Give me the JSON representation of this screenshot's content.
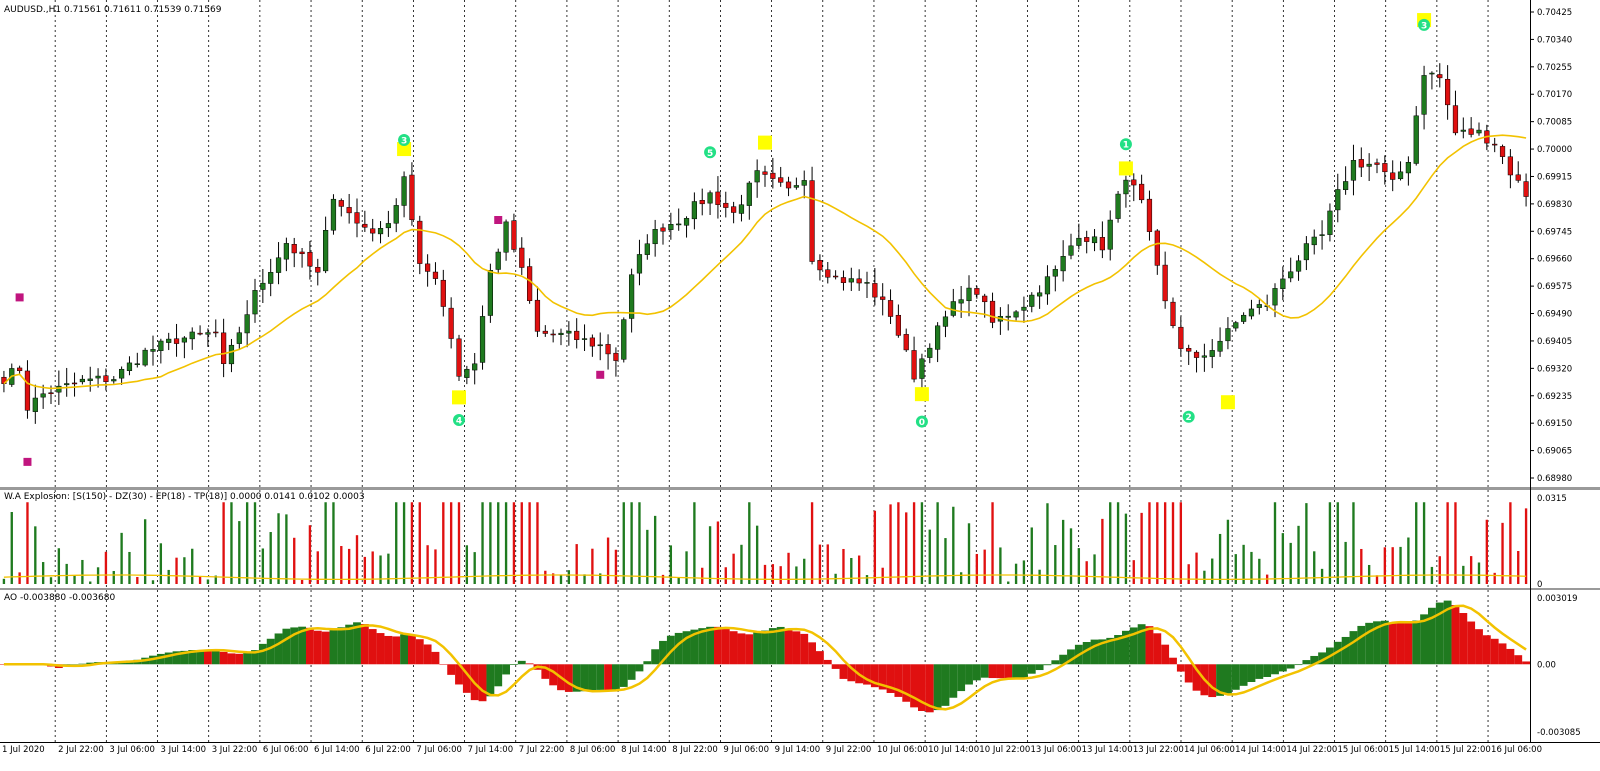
{
  "panels": {
    "price": {
      "title": "AUDUSD.,H1  0.71561 0.71611 0.71539 0.71569",
      "y_ticks": [
        "0.70425",
        "0.70340",
        "0.70255",
        "0.70170",
        "0.70085",
        "0.70000",
        "0.69915",
        "0.69830",
        "0.69745",
        "0.69660",
        "0.69575",
        "0.69490",
        "0.69405",
        "0.69320",
        "0.69235",
        "0.69150",
        "0.69065",
        "0.68980"
      ],
      "ylim": [
        0.6898,
        0.70425
      ]
    },
    "explosion": {
      "title": "W.A Explosion: [S(150) - DZ(30) - EP(18) - TP(18)] 0.0000 0.0141 0.0102 0.0003",
      "y_ticks": [
        "0.0315",
        "0"
      ],
      "ylim": [
        0,
        0.0315
      ]
    },
    "ao": {
      "title": "AO -0.003880 -0.003680",
      "y_ticks": [
        "0.003019",
        "0.00",
        "-0.003085"
      ],
      "ylim": [
        -0.003085,
        0.003019
      ]
    }
  },
  "x_ticks": [
    "1 Jul 2020",
    "2 Jul 22:00",
    "3 Jul 06:00",
    "3 Jul 14:00",
    "3 Jul 22:00",
    "6 Jul 06:00",
    "6 Jul 14:00",
    "6 Jul 22:00",
    "7 Jul 06:00",
    "7 Jul 14:00",
    "7 Jul 22:00",
    "8 Jul 06:00",
    "8 Jul 14:00",
    "8 Jul 22:00",
    "9 Jul 06:00",
    "9 Jul 14:00",
    "9 Jul 22:00",
    "10 Jul 06:00",
    "10 Jul 14:00",
    "10 Jul 22:00",
    "13 Jul 06:00",
    "13 Jul 14:00",
    "13 Jul 22:00",
    "14 Jul 06:00",
    "14 Jul 14:00",
    "14 Jul 22:00",
    "15 Jul 06:00",
    "15 Jul 14:00",
    "15 Jul 22:00",
    "16 Jul 06:00"
  ],
  "wave_labels": [
    {
      "text": "3",
      "bar": 51,
      "price": 0.70028
    },
    {
      "text": "4",
      "bar": 58,
      "price": 0.6916
    },
    {
      "text": "5",
      "bar": 90,
      "price": 0.6999
    },
    {
      "text": "0",
      "bar": 117,
      "price": 0.69155
    },
    {
      "text": "1",
      "bar": 143,
      "price": 0.70015
    },
    {
      "text": "2",
      "bar": 151,
      "price": 0.6917
    },
    {
      "text": "3",
      "bar": 181,
      "price": 0.70385
    }
  ],
  "colors": {
    "bull": "#1f7a1f",
    "bear": "#e01010",
    "ma": "#f2c200",
    "ao_line": "#f2c200",
    "marker_yellow": "#ffff00",
    "marker_magenta": "#c0157e",
    "wave": "#22e085",
    "grid": "#000000"
  },
  "chart_data": {
    "type": "candlestick",
    "symbol": "AUDUSD.",
    "timeframe": "H1",
    "bars": 195,
    "close_waypoints": [
      [
        0,
        0.6929
      ],
      [
        2,
        0.6932
      ],
      [
        3,
        0.692
      ],
      [
        5,
        0.6924
      ],
      [
        10,
        0.6928
      ],
      [
        14,
        0.6929
      ],
      [
        18,
        0.6937
      ],
      [
        22,
        0.6941
      ],
      [
        27,
        0.6943
      ],
      [
        28,
        0.6932
      ],
      [
        32,
        0.6955
      ],
      [
        36,
        0.6971
      ],
      [
        40,
        0.6961
      ],
      [
        42,
        0.6986
      ],
      [
        45,
        0.6977
      ],
      [
        48,
        0.6974
      ],
      [
        50,
        0.6983
      ],
      [
        51,
        0.6992
      ],
      [
        53,
        0.6963
      ],
      [
        55,
        0.6961
      ],
      [
        57,
        0.6942
      ],
      [
        58,
        0.693
      ],
      [
        60,
        0.6934
      ],
      [
        62,
        0.6962
      ],
      [
        64,
        0.6976
      ],
      [
        66,
        0.6962
      ],
      [
        68,
        0.6943
      ],
      [
        72,
        0.6942
      ],
      [
        76,
        0.6939
      ],
      [
        78,
        0.6935
      ],
      [
        80,
        0.696
      ],
      [
        82,
        0.6972
      ],
      [
        84,
        0.6976
      ],
      [
        86,
        0.6978
      ],
      [
        90,
        0.6986
      ],
      [
        93,
        0.698
      ],
      [
        96,
        0.6992
      ],
      [
        100,
        0.6987
      ],
      [
        102,
        0.6992
      ],
      [
        103,
        0.6966
      ],
      [
        106,
        0.696
      ],
      [
        110,
        0.6958
      ],
      [
        113,
        0.6949
      ],
      [
        116,
        0.693
      ],
      [
        118,
        0.694
      ],
      [
        122,
        0.6955
      ],
      [
        124,
        0.6956
      ],
      [
        126,
        0.6946
      ],
      [
        130,
        0.6952
      ],
      [
        134,
        0.6962
      ],
      [
        137,
        0.6974
      ],
      [
        140,
        0.697
      ],
      [
        143,
        0.6992
      ],
      [
        145,
        0.6983
      ],
      [
        148,
        0.6952
      ],
      [
        150,
        0.6939
      ],
      [
        152,
        0.6934
      ],
      [
        156,
        0.6943
      ],
      [
        158,
        0.6949
      ],
      [
        161,
        0.6952
      ],
      [
        163,
        0.696
      ],
      [
        166,
        0.6969
      ],
      [
        168,
        0.6973
      ],
      [
        170,
        0.6986
      ],
      [
        172,
        0.6996
      ],
      [
        175,
        0.6995
      ],
      [
        177,
        0.6989
      ],
      [
        179,
        0.6997
      ],
      [
        181,
        0.7024
      ],
      [
        183,
        0.7022
      ],
      [
        185,
        0.7005
      ],
      [
        188,
        0.7005
      ],
      [
        190,
        0.7002
      ],
      [
        192,
        0.6993
      ],
      [
        194,
        0.6986
      ]
    ],
    "high_markers": [
      {
        "bar": 51,
        "price": 0.7
      },
      {
        "bar": 97,
        "price": 0.7002
      },
      {
        "bar": 143,
        "price": 0.6994
      },
      {
        "bar": 181,
        "price": 0.704
      }
    ],
    "low_markers": [
      {
        "bar": 58,
        "price": 0.6923
      },
      {
        "bar": 117,
        "price": 0.6924
      },
      {
        "bar": 156,
        "price": 0.69215
      }
    ],
    "magenta_markers": [
      {
        "bar": 2,
        "price": 0.6954
      },
      {
        "bar": 3,
        "price": 0.6903
      },
      {
        "bar": 63,
        "price": 0.6978
      },
      {
        "bar": 76,
        "price": 0.693
      }
    ],
    "ma_period": 18,
    "explosion_range": [
      0,
      0.0315
    ],
    "ao_range": [
      -0.003085,
      0.003019
    ]
  }
}
